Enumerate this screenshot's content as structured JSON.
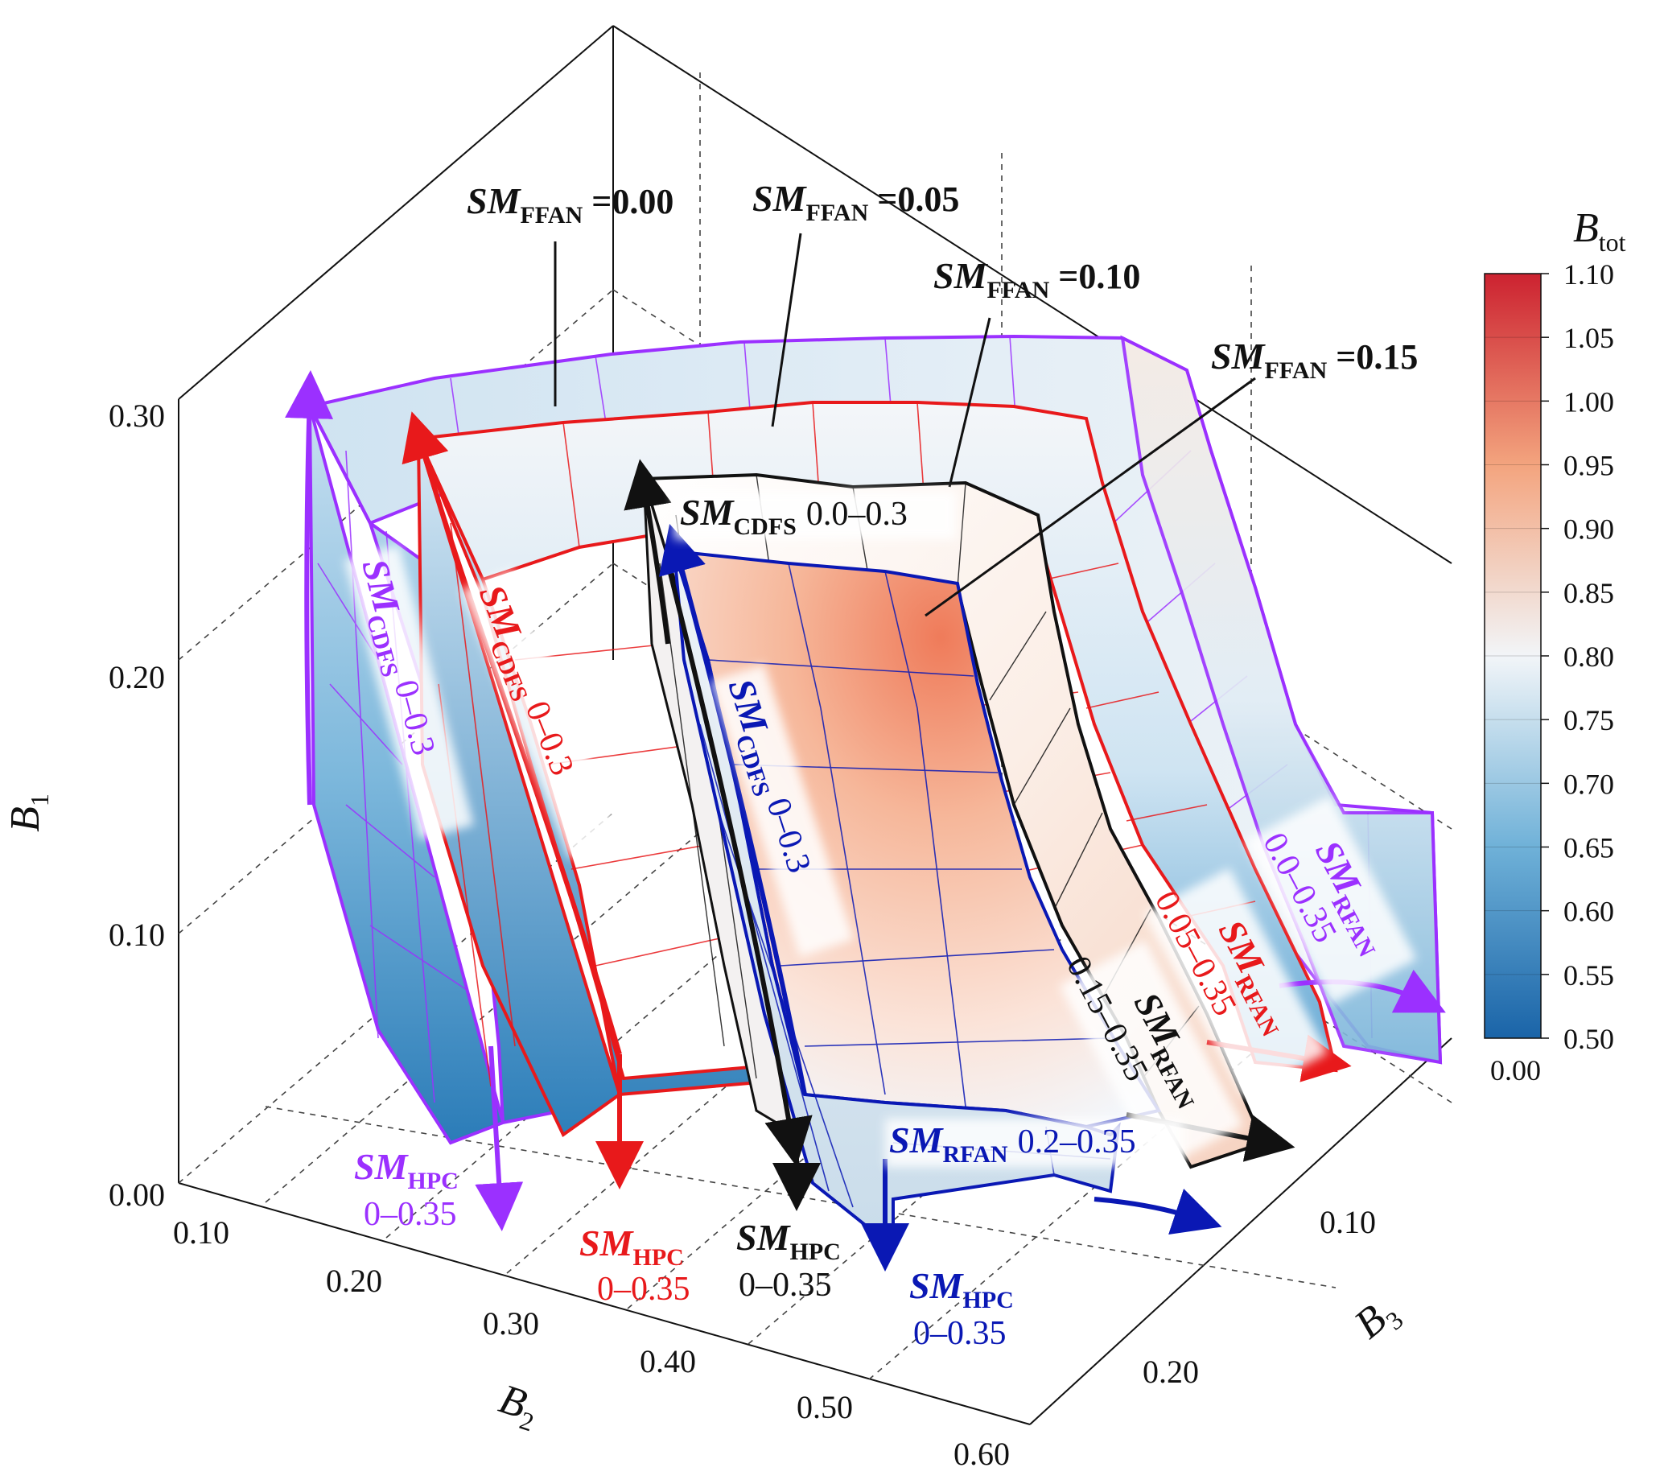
{
  "chart_data": {
    "type": "surface3d",
    "title": "",
    "axes": {
      "x": {
        "label": "B",
        "sub": "2",
        "ticks": [
          "0.10",
          "0.20",
          "0.30",
          "0.40",
          "0.50",
          "0.60"
        ],
        "range": [
          0.1,
          0.6
        ]
      },
      "y": {
        "label": "B",
        "sub": "3",
        "ticks": [
          "0.10",
          "0.20"
        ],
        "range": [
          0.05,
          0.25
        ]
      },
      "z": {
        "label": "B",
        "sub": "1",
        "ticks": [
          "0.00",
          "0.10",
          "0.20",
          "0.30"
        ],
        "range": [
          0.0,
          0.3
        ]
      }
    },
    "colorbar": {
      "label": "B",
      "sub": "tot",
      "ticks": [
        "1.10",
        "1.05",
        "1.00",
        "0.95",
        "0.90",
        "0.85",
        "0.80",
        "0.75",
        "0.70",
        "0.65",
        "0.60",
        "0.55",
        "0.50"
      ],
      "range": [
        0.5,
        1.1
      ],
      "bottom_label": "0.00"
    },
    "surfaces": [
      {
        "name": "SMFFAN=0.00",
        "color": "#9b30ff",
        "b2_range": [
          0.1,
          0.55
        ],
        "b1_max": 0.3,
        "btot_peak": 0.78
      },
      {
        "name": "SMFFAN=0.05",
        "color": "#e8191b",
        "b2_range": [
          0.15,
          0.55
        ],
        "b1_max": 0.29,
        "btot_peak": 0.84
      },
      {
        "name": "SMFFAN=0.10",
        "color": "#111111",
        "b2_range": [
          0.25,
          0.55
        ],
        "b1_max": 0.27,
        "btot_peak": 0.88
      },
      {
        "name": "SMFFAN=0.15",
        "color": "#0a18b4",
        "b2_range": [
          0.3,
          0.55
        ],
        "b1_max": 0.25,
        "btot_peak": 1.02
      }
    ],
    "labels": {
      "ffan": [
        {
          "sm": "SM",
          "sub": "FFAN",
          "eq": " =",
          "val": "0.00",
          "color": "#111111"
        },
        {
          "sm": "SM",
          "sub": "FFAN",
          "eq": " =",
          "val": "0.05",
          "color": "#111111"
        },
        {
          "sm": "SM",
          "sub": "FFAN",
          "eq": " =",
          "val": "0.10",
          "color": "#111111"
        },
        {
          "sm": "SM",
          "sub": "FFAN",
          "eq": " =",
          "val": "0.15",
          "color": "#111111"
        }
      ],
      "cdfs": [
        {
          "sm": "SM",
          "sub": "CDFS",
          "val": "0–0.3",
          "color": "#9b30ff"
        },
        {
          "sm": "SM",
          "sub": "CDFS",
          "val": "0–0.3",
          "color": "#e8191b"
        },
        {
          "sm": "SM",
          "sub": "CDFS",
          "val": "0.0–0.3",
          "color": "#111111"
        },
        {
          "sm": "SM",
          "sub": "CDFS",
          "val": "0–0.3",
          "color": "#0a18b4"
        }
      ],
      "hpc": [
        {
          "sm": "SM",
          "sub": "HPC",
          "val": "0–0.35",
          "color": "#9b30ff"
        },
        {
          "sm": "SM",
          "sub": "HPC",
          "val": "0–0.35",
          "color": "#e8191b"
        },
        {
          "sm": "SM",
          "sub": "HPC",
          "val": "0–0.35",
          "color": "#111111"
        },
        {
          "sm": "SM",
          "sub": "HPC",
          "val": "0–0.35",
          "color": "#0a18b4"
        }
      ],
      "rfan": [
        {
          "sm": "SM",
          "sub": "RFAN",
          "val": "0.0–0.35",
          "color": "#9b30ff"
        },
        {
          "sm": "SM",
          "sub": "RFAN",
          "val": "0.05–0.35",
          "color": "#e8191b"
        },
        {
          "sm": "SM",
          "sub": "RFAN",
          "val": "0.15–0.35",
          "color": "#111111"
        },
        {
          "sm": "SM",
          "sub": "RFAN",
          "val": "0.2–0.35",
          "color": "#0a18b4"
        }
      ]
    }
  }
}
